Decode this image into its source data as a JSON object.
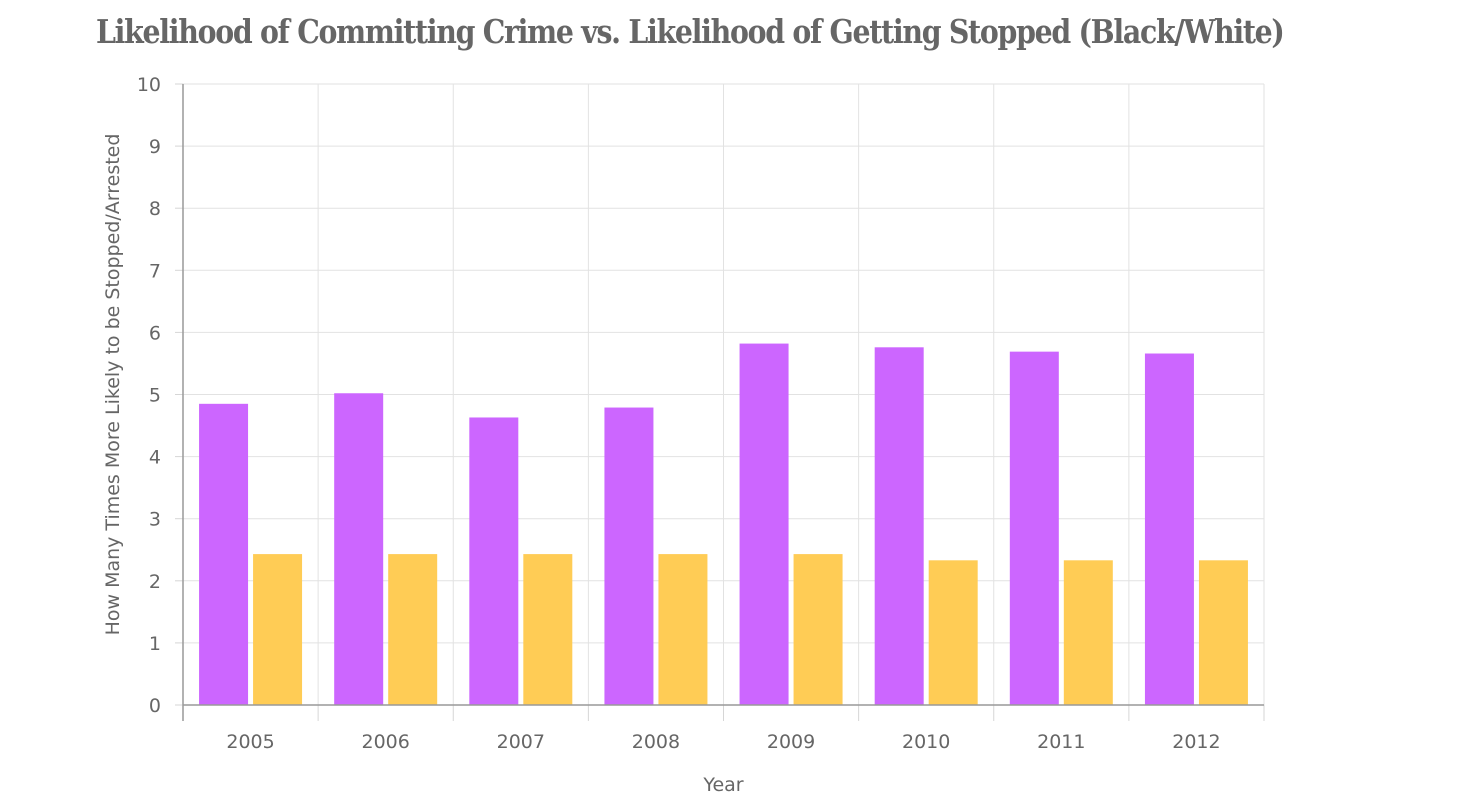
{
  "chart_data": {
    "type": "bar",
    "title": "Likelihood of Committing Crime vs. Likelihood of Getting Stopped (Black/White)",
    "xlabel": "Year",
    "ylabel": "How Many Times More Likely to be Stopped/Arrested",
    "categories": [
      "2005",
      "2006",
      "2007",
      "2008",
      "2009",
      "2010",
      "2011",
      "2012"
    ],
    "series": [
      {
        "values": [
          4.85,
          5.02,
          4.63,
          4.79,
          5.82,
          5.76,
          5.69,
          5.66
        ],
        "color": "#cc66ff"
      },
      {
        "values": [
          2.43,
          2.43,
          2.43,
          2.43,
          2.43,
          2.33,
          2.33,
          2.33
        ],
        "color": "#ffcc55"
      }
    ],
    "ylim": [
      0,
      10
    ],
    "yticks": [
      0,
      1,
      2,
      3,
      4,
      5,
      6,
      7,
      8,
      9,
      10
    ],
    "grid": true,
    "legend": "none"
  }
}
